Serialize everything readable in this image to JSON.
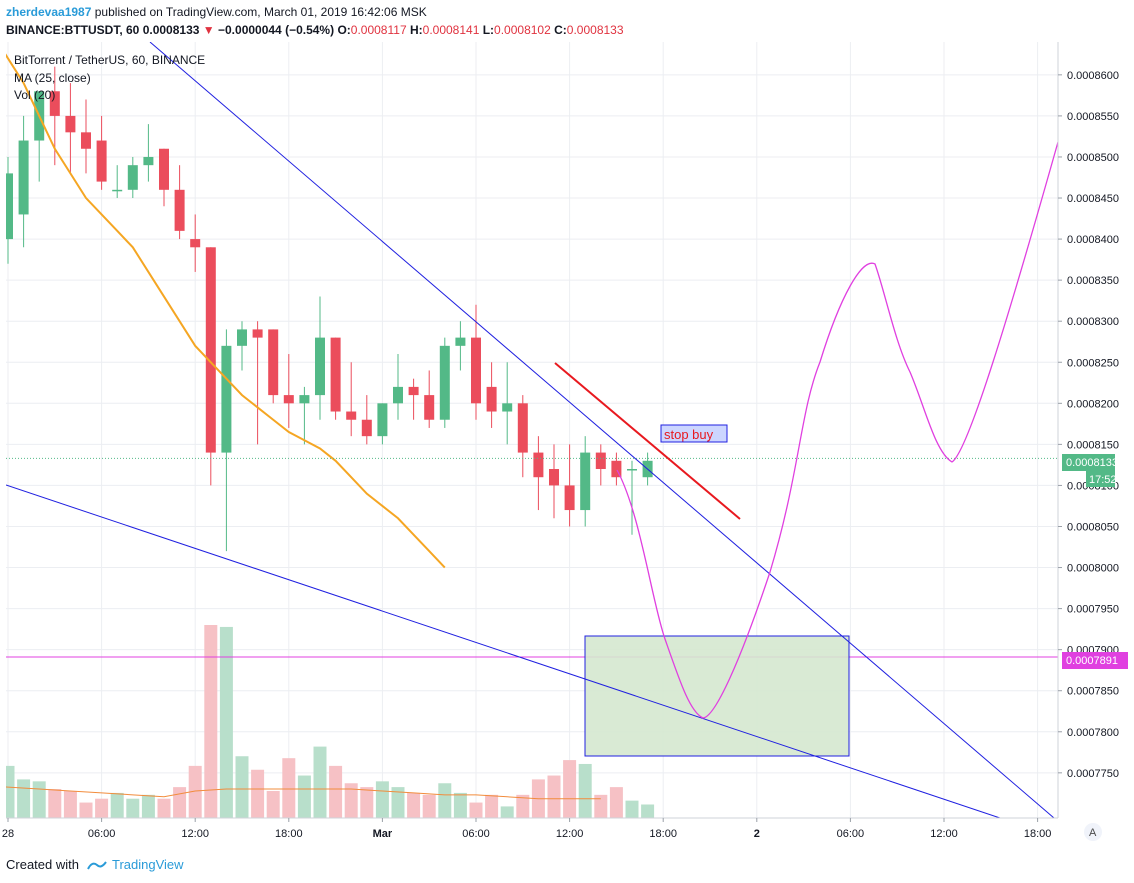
{
  "header": {
    "user": "zherdevaa1987",
    "published": "published on TradingView.com, March 01, 2019 16:42:06 MSK"
  },
  "ohlc": {
    "symbol": "BINANCE:BTTUSDT, 60",
    "last": "0.0008133",
    "arrow": "▼",
    "change": "−0.0000044 (−0.54%)",
    "o_label": "O:",
    "o": "0.0008117",
    "h_label": "H:",
    "h": "0.0008141",
    "l_label": "L:",
    "l": "0.0008102",
    "c_label": "C:",
    "c": "0.0008133"
  },
  "legend": {
    "title": "BitTorrent / TetherUS, 60, BINANCE",
    "ma": "MA (25, close)",
    "vol": "Vol (20)"
  },
  "footer": {
    "created": "Created with",
    "brand": "TradingView"
  },
  "chart_data": {
    "type": "candlestick",
    "y_axis": {
      "range": [
        0.0007695,
        0.000864
      ],
      "ticks": [
        "0.0008600",
        "0.0008550",
        "0.0008500",
        "0.0008450",
        "0.0008400",
        "0.0008350",
        "0.0008300",
        "0.0008250",
        "0.0008200",
        "0.0008150",
        "0.0008100",
        "0.0008050",
        "0.0008000",
        "0.0007950",
        "0.0007900",
        "0.0007850",
        "0.0007800",
        "0.0007750"
      ],
      "price_label": "0.0008133",
      "countdown": "17:52",
      "target_label": "0.0007891"
    },
    "x_axis": {
      "ticks": [
        {
          "h": 0,
          "label": "28"
        },
        {
          "h": 6,
          "label": "06:00"
        },
        {
          "h": 12,
          "label": "12:00"
        },
        {
          "h": 18,
          "label": "18:00"
        },
        {
          "h": 24,
          "label": "Mar"
        },
        {
          "h": 30,
          "label": "06:00"
        },
        {
          "h": 36,
          "label": "12:00"
        },
        {
          "h": 42,
          "label": "18:00"
        },
        {
          "h": 48,
          "label": "2"
        },
        {
          "h": 54,
          "label": "06:00"
        },
        {
          "h": 60,
          "label": "12:00"
        },
        {
          "h": 66,
          "label": "18:00"
        }
      ]
    },
    "candles": [
      {
        "o": 0.00084,
        "h": 0.00085,
        "l": 0.000837,
        "c": 0.000848,
        "v": 27
      },
      {
        "o": 0.000843,
        "h": 0.000855,
        "l": 0.000839,
        "c": 0.000852,
        "v": 20
      },
      {
        "o": 0.000852,
        "h": 0.000858,
        "l": 0.000847,
        "c": 0.000858,
        "v": 19
      },
      {
        "o": 0.000858,
        "h": 0.000861,
        "l": 0.000849,
        "c": 0.000855,
        "v": 15
      },
      {
        "o": 0.000855,
        "h": 0.000859,
        "l": 0.000848,
        "c": 0.000853,
        "v": 14
      },
      {
        "o": 0.000853,
        "h": 0.000857,
        "l": 0.000848,
        "c": 0.000851,
        "v": 8
      },
      {
        "o": 0.000852,
        "h": 0.000855,
        "l": 0.000846,
        "c": 0.000847,
        "v": 10
      },
      {
        "o": 0.000846,
        "h": 0.000849,
        "l": 0.000845,
        "c": 0.000846,
        "v": 13
      },
      {
        "o": 0.000846,
        "h": 0.00085,
        "l": 0.000845,
        "c": 0.000849,
        "v": 10
      },
      {
        "o": 0.000849,
        "h": 0.000854,
        "l": 0.000847,
        "c": 0.00085,
        "v": 12
      },
      {
        "o": 0.000851,
        "h": 0.000851,
        "l": 0.000844,
        "c": 0.000846,
        "v": 10
      },
      {
        "o": 0.000846,
        "h": 0.000849,
        "l": 0.00084,
        "c": 0.000841,
        "v": 16
      },
      {
        "o": 0.00084,
        "h": 0.000843,
        "l": 0.000836,
        "c": 0.000839,
        "v": 27
      },
      {
        "o": 0.000839,
        "h": 0.000839,
        "l": 0.00081,
        "c": 0.000814,
        "v": 100
      },
      {
        "o": 0.000814,
        "h": 0.000829,
        "l": 0.000802,
        "c": 0.000827,
        "v": 99
      },
      {
        "o": 0.000827,
        "h": 0.00083,
        "l": 0.000824,
        "c": 0.000829,
        "v": 32
      },
      {
        "o": 0.000829,
        "h": 0.00083,
        "l": 0.000815,
        "c": 0.000828,
        "v": 25
      },
      {
        "o": 0.000829,
        "h": 0.000829,
        "l": 0.00082,
        "c": 0.000821,
        "v": 14
      },
      {
        "o": 0.000821,
        "h": 0.000826,
        "l": 0.000817,
        "c": 0.00082,
        "v": 31
      },
      {
        "o": 0.00082,
        "h": 0.000822,
        "l": 0.000815,
        "c": 0.000821,
        "v": 22
      },
      {
        "o": 0.000821,
        "h": 0.000833,
        "l": 0.000818,
        "c": 0.000828,
        "v": 37
      },
      {
        "o": 0.000828,
        "h": 0.000828,
        "l": 0.000818,
        "c": 0.000819,
        "v": 27
      },
      {
        "o": 0.000819,
        "h": 0.000825,
        "l": 0.000816,
        "c": 0.000818,
        "v": 18
      },
      {
        "o": 0.000818,
        "h": 0.000821,
        "l": 0.000815,
        "c": 0.000816,
        "v": 16
      },
      {
        "o": 0.000816,
        "h": 0.00082,
        "l": 0.000815,
        "c": 0.00082,
        "v": 19
      },
      {
        "o": 0.00082,
        "h": 0.000826,
        "l": 0.000818,
        "c": 0.000822,
        "v": 16
      },
      {
        "o": 0.000822,
        "h": 0.000823,
        "l": 0.000818,
        "c": 0.000821,
        "v": 13
      },
      {
        "o": 0.000821,
        "h": 0.000824,
        "l": 0.000817,
        "c": 0.000818,
        "v": 12
      },
      {
        "o": 0.000818,
        "h": 0.000828,
        "l": 0.000817,
        "c": 0.000827,
        "v": 18
      },
      {
        "o": 0.000827,
        "h": 0.00083,
        "l": 0.000824,
        "c": 0.000828,
        "v": 13
      },
      {
        "o": 0.000828,
        "h": 0.000832,
        "l": 0.000818,
        "c": 0.00082,
        "v": 8
      },
      {
        "o": 0.000822,
        "h": 0.000825,
        "l": 0.000817,
        "c": 0.000819,
        "v": 12
      },
      {
        "o": 0.000819,
        "h": 0.000825,
        "l": 0.000815,
        "c": 0.00082,
        "v": 6
      },
      {
        "o": 0.00082,
        "h": 0.000821,
        "l": 0.000811,
        "c": 0.000814,
        "v": 12
      },
      {
        "o": 0.000814,
        "h": 0.000816,
        "l": 0.000807,
        "c": 0.000811,
        "v": 20
      },
      {
        "o": 0.000812,
        "h": 0.000815,
        "l": 0.000806,
        "c": 0.00081,
        "v": 22
      },
      {
        "o": 0.00081,
        "h": 0.000815,
        "l": 0.000805,
        "c": 0.000807,
        "v": 30
      },
      {
        "o": 0.000807,
        "h": 0.000816,
        "l": 0.000805,
        "c": 0.000814,
        "v": 28
      },
      {
        "o": 0.000814,
        "h": 0.000815,
        "l": 0.00081,
        "c": 0.000812,
        "v": 12
      },
      {
        "o": 0.000813,
        "h": 0.000814,
        "l": 0.00081,
        "c": 0.000811,
        "v": 16
      },
      {
        "o": 0.000812,
        "h": 0.000813,
        "l": 0.000804,
        "c": 0.000812,
        "v": 9
      },
      {
        "o": 0.000811,
        "h": 0.000814,
        "l": 0.00081,
        "c": 0.000813,
        "v": 7
      }
    ],
    "ma_series": [
      {
        "h": -2.5,
        "v": 0.000868
      },
      {
        "h": -1,
        "v": 0.000865
      },
      {
        "h": 0,
        "v": 0.000862
      },
      {
        "h": 1,
        "v": 0.000859
      },
      {
        "h": 2,
        "v": 0.000855
      },
      {
        "h": 3,
        "v": 0.000851
      },
      {
        "h": 4,
        "v": 0.000848
      },
      {
        "h": 5,
        "v": 0.000845
      },
      {
        "h": 6,
        "v": 0.000843
      },
      {
        "h": 7,
        "v": 0.000841
      },
      {
        "h": 8,
        "v": 0.000839
      },
      {
        "h": 9,
        "v": 0.000836
      },
      {
        "h": 10,
        "v": 0.000833
      },
      {
        "h": 11,
        "v": 0.00083
      },
      {
        "h": 12,
        "v": 0.000827
      },
      {
        "h": 13,
        "v": 0.000825
      },
      {
        "h": 14,
        "v": 0.000823
      },
      {
        "h": 15,
        "v": 0.000821
      },
      {
        "h": 16,
        "v": 0.0008195
      },
      {
        "h": 17,
        "v": 0.000818
      },
      {
        "h": 18,
        "v": 0.0008165
      },
      {
        "h": 19,
        "v": 0.0008155
      },
      {
        "h": 20,
        "v": 0.0008145
      },
      {
        "h": 21,
        "v": 0.000813
      },
      {
        "h": 22,
        "v": 0.000811
      },
      {
        "h": 23,
        "v": 0.000809
      },
      {
        "h": 24,
        "v": 0.0008075
      },
      {
        "h": 25,
        "v": 0.000806
      },
      {
        "h": 26,
        "v": 0.000804
      },
      {
        "h": 27,
        "v": 0.000802
      },
      {
        "h": 28,
        "v": 0.0008
      }
    ],
    "vol_ma": [
      {
        "h": -2.5,
        "v": 17
      },
      {
        "h": 0,
        "v": 16
      },
      {
        "h": 2,
        "v": 15
      },
      {
        "h": 4,
        "v": 14
      },
      {
        "h": 6,
        "v": 13
      },
      {
        "h": 8,
        "v": 12
      },
      {
        "h": 10,
        "v": 11
      },
      {
        "h": 12,
        "v": 14
      },
      {
        "h": 14,
        "v": 15
      },
      {
        "h": 16,
        "v": 15
      },
      {
        "h": 18,
        "v": 15
      },
      {
        "h": 20,
        "v": 15
      },
      {
        "h": 22,
        "v": 15
      },
      {
        "h": 24,
        "v": 14
      },
      {
        "h": 26,
        "v": 13
      },
      {
        "h": 28,
        "v": 12
      },
      {
        "h": 30,
        "v": 12
      },
      {
        "h": 32,
        "v": 11
      },
      {
        "h": 34,
        "v": 10
      },
      {
        "h": 36,
        "v": 10
      },
      {
        "h": 38,
        "v": 10
      }
    ],
    "drawings": {
      "stop_buy_label": "stop buy",
      "target_price": 0.0007891,
      "last_price": 0.0008133
    }
  },
  "colors": {
    "up": "#53b987",
    "down": "#eb4d5c",
    "up_vol": "#b8dfcb",
    "down_vol": "#f6c1c5",
    "ma": "#f5a623",
    "vol_ma": "#f28c3c",
    "trend": "#2020e0",
    "path": "#e040e0",
    "stop": "#e8191f",
    "box_fill": "#d5e8cf",
    "target": "#e040e0",
    "last_price_bg": "#53b987"
  }
}
